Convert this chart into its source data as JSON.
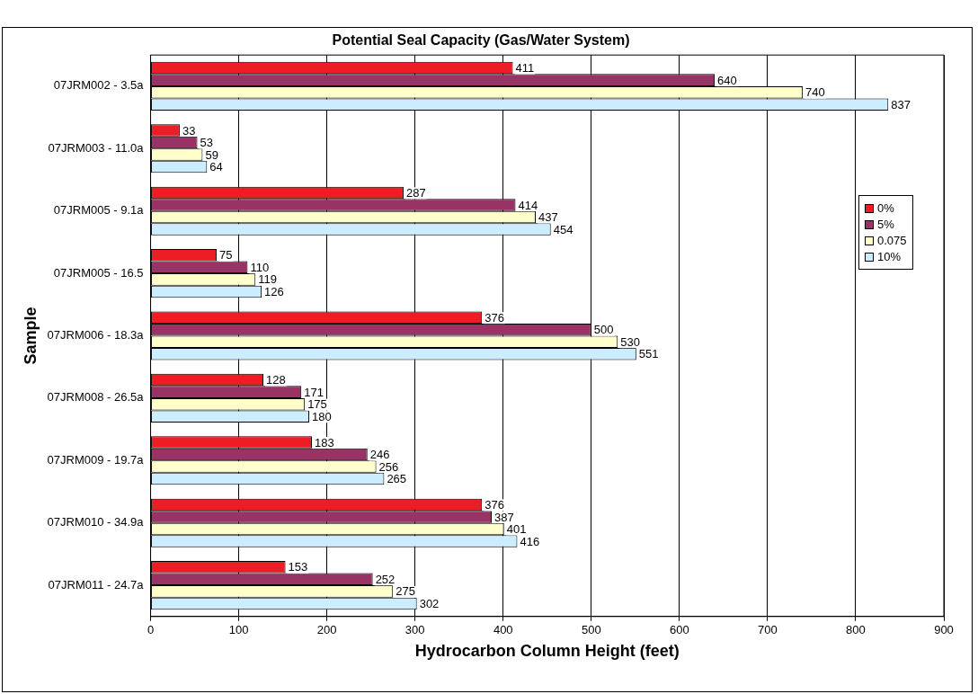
{
  "chart_data": {
    "type": "bar",
    "orientation": "horizontal",
    "title": "Potential Seal Capacity (Gas/Water System)",
    "xlabel": "Hydrocarbon Column Height (feet)",
    "ylabel": "Sample",
    "categories": [
      "07JRM002 - 3.5a",
      "07JRM003 - 11.0a",
      "07JRM005 - 9.1a",
      "07JRM005 - 16.5",
      "07JRM006 - 18.3a",
      "07JRM008 - 26.5a",
      "07JRM009 - 19.7a",
      "07JRM010 - 34.9a",
      "07JRM011 - 24.7a"
    ],
    "series": [
      {
        "name": "0%",
        "color": "#ee1c24",
        "values": [
          411,
          33,
          287,
          75,
          376,
          128,
          183,
          376,
          153
        ]
      },
      {
        "name": "5%",
        "color": "#993366",
        "values": [
          640,
          53,
          414,
          110,
          500,
          171,
          246,
          387,
          252
        ]
      },
      {
        "name": "0.075",
        "color": "#ffffcc",
        "values": [
          740,
          59,
          437,
          119,
          530,
          175,
          256,
          401,
          275
        ]
      },
      {
        "name": "10%",
        "color": "#ccecff",
        "values": [
          837,
          64,
          454,
          126,
          551,
          180,
          265,
          416,
          302
        ]
      }
    ],
    "xlim": [
      0,
      900
    ],
    "xticks": [
      0,
      100,
      200,
      300,
      400,
      500,
      600,
      700,
      800,
      900
    ],
    "grid": "x",
    "legend": "right",
    "data_labels": true
  }
}
